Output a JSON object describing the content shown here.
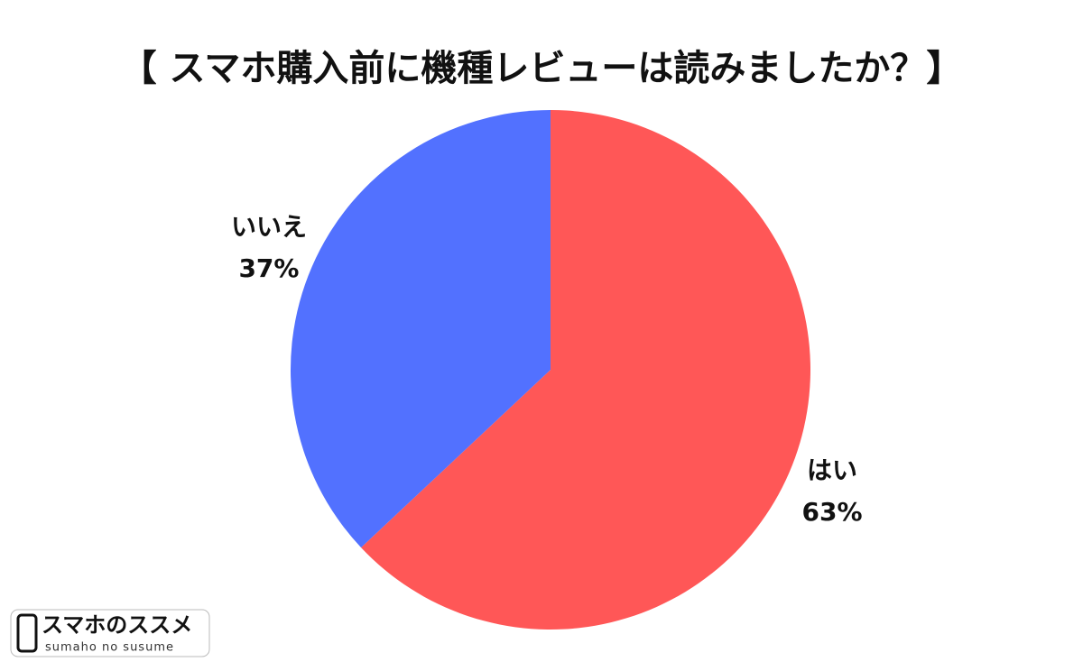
{
  "chart_data": {
    "type": "pie",
    "title": "【 スマホ購入前に機種レビューは読みましたか？】",
    "categories": [
      "はい",
      "いいえ"
    ],
    "values": [
      63,
      37
    ],
    "value_labels": [
      "63%",
      "37%"
    ],
    "colors": [
      "#ff5757",
      "#5271ff"
    ]
  },
  "logo": {
    "name": "スマホのススメ",
    "tagline": "sumaho no susume"
  }
}
